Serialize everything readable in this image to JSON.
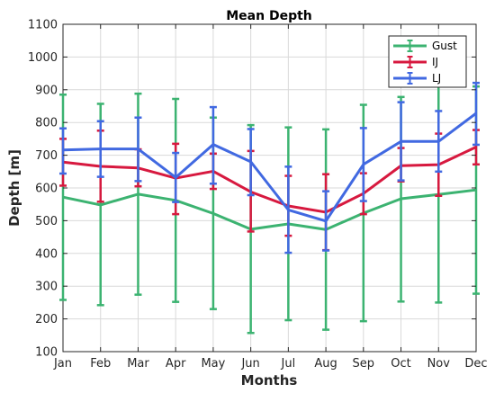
{
  "chart_data": {
    "type": "line",
    "title": "Mean Depth",
    "xlabel": "Months",
    "ylabel": "Depth [m]",
    "categories": [
      "Jan",
      "Feb",
      "Mar",
      "Apr",
      "May",
      "Jun",
      "Jul",
      "Aug",
      "Sep",
      "Oct",
      "Nov",
      "Dec"
    ],
    "ylim": [
      100,
      1100
    ],
    "yticks": [
      100,
      200,
      300,
      400,
      500,
      600,
      700,
      800,
      900,
      1000,
      1100
    ],
    "grid": true,
    "legend_position": "top-right",
    "error_bars": true,
    "series": [
      {
        "name": "Gust",
        "color": "#3cb371",
        "values": [
          572,
          548,
          581,
          562,
          522,
          474,
          490,
          473,
          523,
          567,
          580,
          594
        ],
        "err_low": [
          258,
          242,
          274,
          252,
          230,
          157,
          196,
          167,
          193,
          253,
          250,
          277
        ],
        "err_high": [
          885,
          857,
          888,
          872,
          815,
          792,
          785,
          779,
          854,
          878,
          910,
          910
        ]
      },
      {
        "name": "IJ",
        "color": "#d7193f",
        "values": [
          679,
          666,
          661,
          630,
          651,
          588,
          545,
          526,
          583,
          668,
          671,
          725
        ],
        "err_low": [
          607,
          558,
          605,
          520,
          597,
          467,
          454,
          410,
          520,
          620,
          576,
          672
        ],
        "err_high": [
          750,
          775,
          718,
          735,
          705,
          713,
          637,
          642,
          645,
          722,
          766,
          777
        ]
      },
      {
        "name": "LJ",
        "color": "#4169e1",
        "values": [
          716,
          719,
          719,
          632,
          733,
          680,
          533,
          499,
          672,
          742,
          742,
          828
        ],
        "err_low": [
          644,
          634,
          621,
          557,
          613,
          578,
          402,
          409,
          560,
          623,
          650,
          732
        ],
        "err_high": [
          782,
          804,
          815,
          707,
          847,
          780,
          665,
          590,
          783,
          862,
          835,
          921
        ]
      }
    ]
  }
}
